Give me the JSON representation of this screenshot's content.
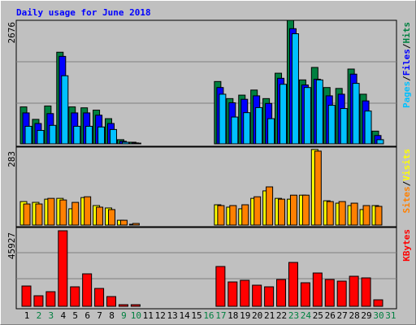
{
  "chart_data": [
    {
      "type": "bar",
      "title": "Daily usage for June 2018",
      "ylim": [
        0,
        2676
      ],
      "yticks": [
        2676
      ],
      "legend_separator": "/",
      "series": [
        {
          "name": "Hits",
          "color": "#008040",
          "values": [
            800,
            530,
            820,
            1985,
            800,
            780,
            730,
            545,
            90,
            35,
            0,
            0,
            0,
            0,
            0,
            0,
            1350,
            980,
            1055,
            1165,
            980,
            1530,
            2676,
            1385,
            1655,
            1220,
            1200,
            1620,
            1075,
            275,
            0
          ]
        },
        {
          "name": "Files",
          "color": "#0000ff",
          "values": [
            670,
            440,
            655,
            1895,
            670,
            670,
            620,
            440,
            55,
            20,
            0,
            0,
            0,
            0,
            0,
            0,
            1220,
            890,
            965,
            1040,
            875,
            1420,
            2495,
            1275,
            1400,
            1040,
            1075,
            1510,
            930,
            180,
            0
          ]
        },
        {
          "name": "Pages",
          "color": "#00c0ff",
          "values": [
            380,
            290,
            400,
            1475,
            380,
            380,
            365,
            310,
            35,
            15,
            0,
            0,
            0,
            0,
            0,
            0,
            1075,
            580,
            675,
            785,
            545,
            1290,
            2385,
            1220,
            1385,
            835,
            765,
            1310,
            710,
            90,
            0
          ]
        }
      ]
    },
    {
      "type": "bar",
      "ylim": [
        0,
        283
      ],
      "yticks": [
        283
      ],
      "legend_separator": "/",
      "series": [
        {
          "name": "Visits",
          "color": "#ffff00",
          "values": [
            88,
            85,
            97,
            100,
            61,
            103,
            73,
            64,
            18,
            3,
            0,
            0,
            0,
            0,
            0,
            0,
            76,
            67,
            61,
            100,
            128,
            100,
            97,
            112,
            283,
            91,
            82,
            73,
            58,
            73,
            0
          ]
        },
        {
          "name": "Sites",
          "color": "#ff8000",
          "values": [
            79,
            79,
            100,
            94,
            85,
            106,
            67,
            58,
            18,
            6,
            0,
            0,
            0,
            0,
            0,
            0,
            73,
            73,
            76,
            106,
            143,
            97,
            112,
            112,
            277,
            88,
            88,
            82,
            73,
            70,
            0
          ]
        }
      ]
    },
    {
      "type": "bar",
      "ylim": [
        0,
        45927
      ],
      "yticks": [
        45927
      ],
      "categories": [
        "1",
        "2",
        "3",
        "4",
        "5",
        "6",
        "7",
        "8",
        "9",
        "10",
        "11",
        "12",
        "13",
        "14",
        "15",
        "16",
        "17",
        "18",
        "19",
        "20",
        "21",
        "22",
        "23",
        "24",
        "25",
        "26",
        "27",
        "28",
        "29",
        "30",
        "31"
      ],
      "category_colors": [
        "#000000",
        "#008040",
        "#008040",
        "#000000",
        "#000000",
        "#000000",
        "#000000",
        "#000000",
        "#008040",
        "#008040",
        "#000000",
        "#000000",
        "#000000",
        "#000000",
        "#000000",
        "#008040",
        "#008040",
        "#000000",
        "#000000",
        "#000000",
        "#000000",
        "#000000",
        "#008040",
        "#008040",
        "#000000",
        "#000000",
        "#000000",
        "#000000",
        "#000000",
        "#008040",
        "#008040"
      ],
      "series": [
        {
          "name": "KBytes",
          "color": "#ff0000",
          "values": [
            12345,
            6420,
            8890,
            45927,
            11850,
            19750,
            10865,
            5925,
            990,
            990,
            0,
            0,
            0,
            0,
            0,
            0,
            24200,
            14815,
            15800,
            12840,
            11850,
            16295,
            26670,
            14320,
            20250,
            16295,
            15310,
            18270,
            17285,
            3950,
            0
          ]
        }
      ]
    }
  ]
}
